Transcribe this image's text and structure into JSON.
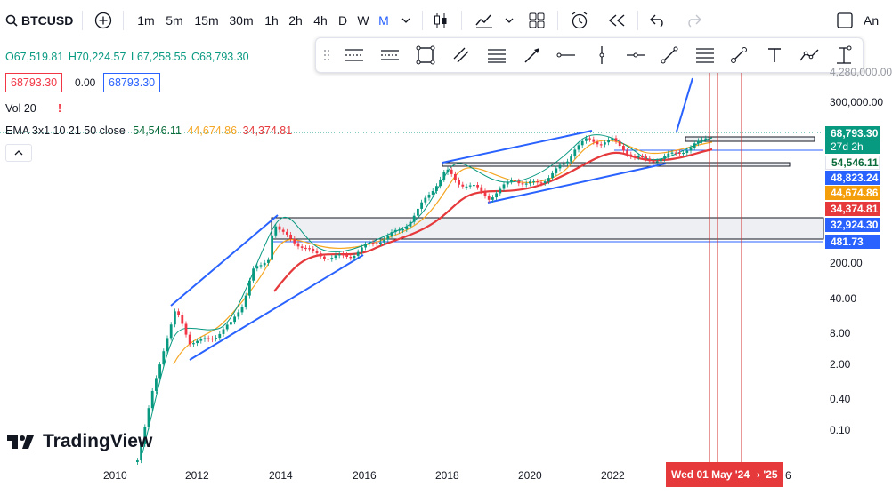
{
  "symbol": "BTCUSD",
  "intervals": [
    "1m",
    "5m",
    "15m",
    "30m",
    "1h",
    "2h",
    "4h",
    "D",
    "W",
    "M"
  ],
  "active_interval": "M",
  "header_right": "An",
  "ohlc": {
    "o": "O67,519.81",
    "h": "H70,224.57",
    "l": "L67,258.55",
    "c": "C68,793.30"
  },
  "bid": "68793.30",
  "spread": "0.00",
  "ask": "68793.30",
  "volume_label": "Vol 20",
  "volume_warning": "!",
  "ema_label": "EMA 3x1 10 21 50 close",
  "ema_values": {
    "a": "54,546.11",
    "b": "44,674.86",
    "c": "34,374.81"
  },
  "price_tags": [
    {
      "text": "68,793.30",
      "color": "#089981"
    },
    {
      "text": "27d 2h",
      "color": "#089981"
    },
    {
      "text": "54,546.11",
      "color": "#0a6b3a"
    },
    {
      "text": "48,823.24",
      "color": "#2962ff"
    },
    {
      "text": "44,674.86",
      "color": "#f59e0b"
    },
    {
      "text": "34,374.81",
      "color": "#e5393b"
    },
    {
      "text": "32,924.30",
      "color": "#2962ff"
    },
    {
      "text": "481.73",
      "color": "#2962ff"
    }
  ],
  "axis_labels": [
    "4,280,000.00",
    "300,000.00",
    "200.00",
    "40.00",
    "8.00",
    "2.00",
    "0.40",
    "0.10"
  ],
  "x_labels": [
    "2010",
    "2012",
    "2014",
    "2016",
    "2018",
    "2020",
    "2022"
  ],
  "x_partial": "6",
  "date_tag": "Wed 01 May '24",
  "date_tag_next": "› '25",
  "watermark": "TradingView",
  "colors": {
    "up": "#089981",
    "down": "#f23645",
    "trend": "#2962ff",
    "ema_slow": "#e5393b",
    "ema_fast": "#f5a623",
    "vline": "#d32f2f"
  }
}
